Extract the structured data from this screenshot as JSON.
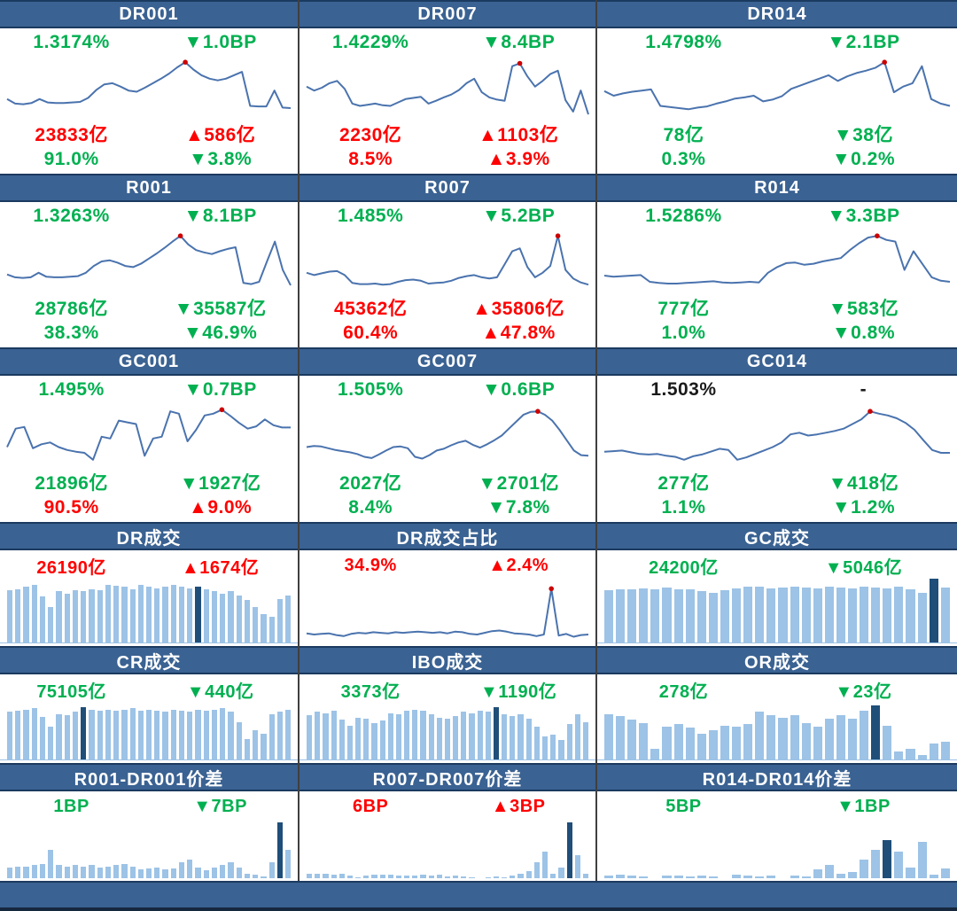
{
  "colors": {
    "green": "#00b050",
    "red": "#ff0000",
    "black": "#1a1a1a",
    "header_bg": "#3a6292",
    "header_text": "#ffffff",
    "line": "#4a73ae",
    "marker": "#cc0000",
    "bar_light": "#9dc3e6",
    "bar_dark": "#1f4e79",
    "divider": "#3f3f3f"
  },
  "panels": [
    {
      "title": "DR001",
      "rows": [
        {
          "left": {
            "text": "1.3174%",
            "color": "green"
          },
          "right": {
            "text": "▼1.0BP",
            "color": "green"
          }
        },
        {
          "left": {
            "text": "23833亿",
            "color": "red"
          },
          "right": {
            "text": "▲586亿",
            "color": "red"
          }
        },
        {
          "left": {
            "text": "91.0%",
            "color": "green"
          },
          "right": {
            "text": "▼3.8%",
            "color": "green"
          }
        }
      ]
    },
    {
      "title": "DR007",
      "rows": [
        {
          "left": {
            "text": "1.4229%",
            "color": "green"
          },
          "right": {
            "text": "▼8.4BP",
            "color": "green"
          }
        },
        {
          "left": {
            "text": "2230亿",
            "color": "red"
          },
          "right": {
            "text": "▲1103亿",
            "color": "red"
          }
        },
        {
          "left": {
            "text": "8.5%",
            "color": "red"
          },
          "right": {
            "text": "▲3.9%",
            "color": "red"
          }
        }
      ]
    },
    {
      "title": "DR014",
      "rows": [
        {
          "left": {
            "text": "1.4798%",
            "color": "green"
          },
          "right": {
            "text": "▼2.1BP",
            "color": "green"
          }
        },
        {
          "left": {
            "text": "78亿",
            "color": "green"
          },
          "right": {
            "text": "▼38亿",
            "color": "green"
          }
        },
        {
          "left": {
            "text": "0.3%",
            "color": "green"
          },
          "right": {
            "text": "▼0.2%",
            "color": "green"
          }
        }
      ]
    },
    {
      "title": "R001",
      "rows": [
        {
          "left": {
            "text": "1.3263%",
            "color": "green"
          },
          "right": {
            "text": "▼8.1BP",
            "color": "green"
          }
        },
        {
          "left": {
            "text": "28786亿",
            "color": "green"
          },
          "right": {
            "text": "▼35587亿",
            "color": "green"
          }
        },
        {
          "left": {
            "text": "38.3%",
            "color": "green"
          },
          "right": {
            "text": "▼46.9%",
            "color": "green"
          }
        }
      ]
    },
    {
      "title": "R007",
      "rows": [
        {
          "left": {
            "text": "1.485%",
            "color": "green"
          },
          "right": {
            "text": "▼5.2BP",
            "color": "green"
          }
        },
        {
          "left": {
            "text": "45362亿",
            "color": "red"
          },
          "right": {
            "text": "▲35806亿",
            "color": "red"
          }
        },
        {
          "left": {
            "text": "60.4%",
            "color": "red"
          },
          "right": {
            "text": "▲47.8%",
            "color": "red"
          }
        }
      ]
    },
    {
      "title": "R014",
      "rows": [
        {
          "left": {
            "text": "1.5286%",
            "color": "green"
          },
          "right": {
            "text": "▼3.3BP",
            "color": "green"
          }
        },
        {
          "left": {
            "text": "777亿",
            "color": "green"
          },
          "right": {
            "text": "▼583亿",
            "color": "green"
          }
        },
        {
          "left": {
            "text": "1.0%",
            "color": "green"
          },
          "right": {
            "text": "▼0.8%",
            "color": "green"
          }
        }
      ]
    },
    {
      "title": "GC001",
      "rows": [
        {
          "left": {
            "text": "1.495%",
            "color": "green"
          },
          "right": {
            "text": "▼0.7BP",
            "color": "green"
          }
        },
        {
          "left": {
            "text": "21896亿",
            "color": "green"
          },
          "right": {
            "text": "▼1927亿",
            "color": "green"
          }
        },
        {
          "left": {
            "text": "90.5%",
            "color": "red"
          },
          "right": {
            "text": "▲9.0%",
            "color": "red"
          }
        }
      ]
    },
    {
      "title": "GC007",
      "rows": [
        {
          "left": {
            "text": "1.505%",
            "color": "green"
          },
          "right": {
            "text": "▼0.6BP",
            "color": "green"
          }
        },
        {
          "left": {
            "text": "2027亿",
            "color": "green"
          },
          "right": {
            "text": "▼2701亿",
            "color": "green"
          }
        },
        {
          "left": {
            "text": "8.4%",
            "color": "green"
          },
          "right": {
            "text": "▼7.8%",
            "color": "green"
          }
        }
      ]
    },
    {
      "title": "GC014",
      "rows": [
        {
          "left": {
            "text": "1.503%",
            "color": "black"
          },
          "right": {
            "text": "-",
            "color": "black"
          }
        },
        {
          "left": {
            "text": "277亿",
            "color": "green"
          },
          "right": {
            "text": "▼418亿",
            "color": "green"
          }
        },
        {
          "left": {
            "text": "1.1%",
            "color": "green"
          },
          "right": {
            "text": "▼1.2%",
            "color": "green"
          }
        }
      ]
    },
    {
      "title": "DR成交",
      "rows": [
        {
          "left": {
            "text": "26190亿",
            "color": "red"
          },
          "right": {
            "text": "▲1674亿",
            "color": "red"
          }
        }
      ]
    },
    {
      "title": "DR成交占比",
      "rows": [
        {
          "left": {
            "text": "34.9%",
            "color": "red"
          },
          "right": {
            "text": "▲2.4%",
            "color": "red"
          }
        }
      ]
    },
    {
      "title": "GC成交",
      "rows": [
        {
          "left": {
            "text": "24200亿",
            "color": "green"
          },
          "right": {
            "text": "▼5046亿",
            "color": "green"
          }
        }
      ]
    },
    {
      "title": "CR成交",
      "rows": [
        {
          "left": {
            "text": "75105亿",
            "color": "green"
          },
          "right": {
            "text": "▼440亿",
            "color": "green"
          }
        }
      ]
    },
    {
      "title": "IBO成交",
      "rows": [
        {
          "left": {
            "text": "3373亿",
            "color": "green"
          },
          "right": {
            "text": "▼1190亿",
            "color": "green"
          }
        }
      ]
    },
    {
      "title": "OR成交",
      "rows": [
        {
          "left": {
            "text": "278亿",
            "color": "green"
          },
          "right": {
            "text": "▼23亿",
            "color": "green"
          }
        }
      ]
    },
    {
      "title": "R001-DR001价差",
      "rows": [
        {
          "left": {
            "text": "1BP",
            "color": "green"
          },
          "right": {
            "text": "▼7BP",
            "color": "green"
          }
        }
      ]
    },
    {
      "title": "R007-DR007价差",
      "rows": [
        {
          "left": {
            "text": "6BP",
            "color": "red"
          },
          "right": {
            "text": "▲3BP",
            "color": "red"
          }
        }
      ]
    },
    {
      "title": "R014-DR014价差",
      "rows": [
        {
          "left": {
            "text": "5BP",
            "color": "green"
          },
          "right": {
            "text": "▼1BP",
            "color": "green"
          }
        }
      ]
    }
  ],
  "chart_data": [
    {
      "type": "line",
      "title": "DR001",
      "unit": "relative 0-100 of rate trend",
      "marker_index": 22,
      "values": [
        30,
        22,
        21,
        23,
        30,
        24,
        23,
        23,
        24,
        25,
        32,
        46,
        56,
        58,
        52,
        45,
        43,
        50,
        58,
        66,
        75,
        86,
        95,
        82,
        72,
        66,
        63,
        66,
        72,
        78,
        18,
        17,
        17,
        45,
        15,
        14
      ]
    },
    {
      "type": "line",
      "title": "DR007",
      "unit": "relative 0-100 of rate trend",
      "marker_index": 28,
      "values": [
        52,
        45,
        50,
        58,
        62,
        48,
        22,
        18,
        20,
        22,
        19,
        18,
        24,
        30,
        32,
        34,
        22,
        27,
        33,
        38,
        46,
        58,
        66,
        42,
        33,
        29,
        27,
        88,
        93,
        70,
        52,
        62,
        74,
        80,
        28,
        8,
        45,
        3
      ]
    },
    {
      "type": "line",
      "title": "DR014",
      "unit": "relative 0-100 of rate trend",
      "marker_index": 30,
      "values": [
        44,
        36,
        40,
        43,
        45,
        47,
        18,
        16,
        14,
        12,
        15,
        17,
        22,
        26,
        31,
        33,
        36,
        26,
        29,
        35,
        48,
        54,
        60,
        66,
        72,
        62,
        70,
        76,
        80,
        85,
        95,
        42,
        52,
        58,
        88,
        30,
        22,
        18
      ]
    },
    {
      "type": "line",
      "title": "R001",
      "unit": "relative 0-100 of rate trend",
      "marker_index": 22,
      "values": [
        27,
        22,
        21,
        22,
        30,
        23,
        22,
        22,
        23,
        24,
        30,
        42,
        50,
        52,
        48,
        42,
        40,
        46,
        55,
        64,
        74,
        85,
        95,
        80,
        70,
        66,
        63,
        68,
        72,
        75,
        12,
        10,
        14,
        50,
        85,
        35,
        8
      ]
    },
    {
      "type": "line",
      "title": "R007",
      "unit": "relative 0-100 of rate trend",
      "marker_index": 33,
      "values": [
        30,
        26,
        29,
        32,
        33,
        26,
        12,
        10,
        10,
        11,
        9,
        10,
        14,
        17,
        18,
        16,
        11,
        12,
        13,
        16,
        21,
        24,
        26,
        22,
        20,
        22,
        45,
        68,
        73,
        40,
        22,
        30,
        42,
        95,
        35,
        20,
        13,
        9
      ]
    },
    {
      "type": "line",
      "title": "R014",
      "unit": "relative 0-100 of rate trend",
      "marker_index": 30,
      "values": [
        25,
        23,
        24,
        25,
        26,
        14,
        12,
        11,
        11,
        12,
        13,
        14,
        15,
        13,
        12,
        13,
        14,
        13,
        30,
        40,
        47,
        48,
        44,
        46,
        50,
        53,
        56,
        70,
        82,
        92,
        95,
        88,
        85,
        35,
        68,
        45,
        22,
        16,
        14
      ]
    },
    {
      "type": "line",
      "title": "GC001",
      "unit": "relative 0-100 of rate trend",
      "marker_index": 25,
      "values": [
        30,
        62,
        65,
        28,
        35,
        38,
        30,
        25,
        22,
        20,
        8,
        48,
        45,
        76,
        73,
        70,
        15,
        45,
        48,
        92,
        88,
        40,
        60,
        85,
        88,
        95,
        84,
        72,
        62,
        66,
        78,
        68,
        64,
        64
      ]
    },
    {
      "type": "line",
      "title": "GC007",
      "unit": "relative 0-100 of rate trend",
      "marker_index": 32,
      "values": [
        30,
        32,
        31,
        28,
        25,
        23,
        21,
        18,
        13,
        11,
        17,
        24,
        30,
        31,
        28,
        13,
        10,
        16,
        24,
        27,
        33,
        38,
        41,
        34,
        29,
        35,
        42,
        50,
        62,
        74,
        86,
        91,
        92,
        86,
        76,
        60,
        42,
        24,
        16,
        15
      ]
    },
    {
      "type": "line",
      "title": "GC014",
      "unit": "relative 0-100 of rate trend",
      "marker_index": 30,
      "values": [
        22,
        23,
        24,
        21,
        18,
        17,
        18,
        15,
        13,
        8,
        14,
        17,
        22,
        27,
        25,
        8,
        12,
        18,
        24,
        30,
        38,
        52,
        55,
        50,
        52,
        55,
        58,
        62,
        70,
        78,
        92,
        88,
        85,
        80,
        72,
        60,
        42,
        25,
        20,
        20
      ]
    },
    {
      "type": "bar",
      "title": "DR成交",
      "unit": "relative 0-100 of daily volume",
      "highlight_index": 23,
      "values": [
        82,
        84,
        87,
        90,
        72,
        56,
        80,
        76,
        82,
        80,
        84,
        82,
        90,
        89,
        87,
        84,
        90,
        87,
        85,
        87,
        90,
        87,
        85,
        88,
        84,
        80,
        76,
        80,
        74,
        66,
        56,
        44,
        40,
        68,
        74
      ]
    },
    {
      "type": "line",
      "title": "DR成交占比",
      "unit": "relative 0-100 of share trend",
      "marker_index": 33,
      "values": [
        10,
        8,
        9,
        10,
        7,
        5,
        9,
        11,
        10,
        12,
        11,
        10,
        12,
        11,
        12,
        13,
        12,
        11,
        12,
        10,
        13,
        12,
        9,
        8,
        11,
        14,
        15,
        13,
        10,
        9,
        8,
        5,
        8,
        90,
        6,
        9,
        4,
        7,
        8
      ]
    },
    {
      "type": "bar",
      "title": "GC成交",
      "unit": "relative 0-100 of daily volume",
      "highlight_index": 28,
      "values": [
        82,
        84,
        83,
        85,
        84,
        86,
        83,
        84,
        80,
        78,
        82,
        85,
        88,
        87,
        85,
        86,
        88,
        86,
        85,
        87,
        86,
        85,
        88,
        86,
        85,
        87,
        84,
        78,
        100,
        86
      ]
    },
    {
      "type": "bar",
      "title": "CR成交",
      "unit": "relative 0-100 of daily volume",
      "highlight_index": 9,
      "values": [
        84,
        86,
        88,
        90,
        75,
        58,
        80,
        78,
        84,
        92,
        88,
        86,
        88,
        86,
        88,
        90,
        86,
        88,
        86,
        84,
        88,
        86,
        84,
        88,
        86,
        88,
        90,
        84,
        66,
        36,
        52,
        46,
        80,
        84,
        88
      ]
    },
    {
      "type": "bar",
      "title": "IBO成交",
      "unit": "relative 0-100 of daily volume",
      "highlight_index": 23,
      "values": [
        78,
        84,
        82,
        86,
        70,
        60,
        74,
        72,
        64,
        68,
        82,
        80,
        86,
        88,
        86,
        80,
        74,
        72,
        76,
        84,
        82,
        86,
        84,
        92,
        80,
        76,
        80,
        72,
        58,
        40,
        44,
        34,
        62,
        80,
        65
      ]
    },
    {
      "type": "bar",
      "title": "OR成交",
      "unit": "relative 0-100 of daily volume",
      "highlight_index": 23,
      "values": [
        80,
        76,
        70,
        64,
        18,
        58,
        62,
        56,
        46,
        52,
        60,
        58,
        62,
        84,
        78,
        74,
        78,
        64,
        58,
        72,
        78,
        72,
        86,
        96,
        60,
        14,
        18,
        8,
        28,
        32
      ]
    },
    {
      "type": "bar",
      "title": "R001-DR001价差",
      "unit": "relative 0-100 of spread",
      "highlight_index": 33,
      "values": [
        18,
        20,
        20,
        22,
        25,
        48,
        22,
        20,
        22,
        20,
        22,
        18,
        20,
        22,
        25,
        20,
        15,
        17,
        18,
        15,
        17,
        28,
        32,
        18,
        14,
        18,
        22,
        28,
        18,
        8,
        6,
        3,
        28,
        95,
        48
      ]
    },
    {
      "type": "bar",
      "title": "R007-DR007价差",
      "unit": "relative 0-100 of spread",
      "highlight_index": 32,
      "values": [
        8,
        8,
        7,
        6,
        7,
        5,
        2,
        5,
        6,
        6,
        6,
        5,
        4,
        5,
        6,
        4,
        6,
        3,
        5,
        3,
        2,
        0,
        2,
        3,
        2,
        4,
        8,
        12,
        28,
        45,
        7,
        18,
        95,
        40,
        8
      ]
    },
    {
      "type": "bar",
      "title": "R014-DR014价差",
      "unit": "relative 0-100 of spread",
      "highlight_index": 24,
      "values": [
        5,
        6,
        4,
        3,
        0,
        5,
        4,
        3,
        4,
        3,
        0,
        6,
        5,
        3,
        4,
        0,
        4,
        3,
        15,
        22,
        8,
        10,
        32,
        48,
        65,
        45,
        18,
        62,
        6,
        16
      ]
    }
  ]
}
